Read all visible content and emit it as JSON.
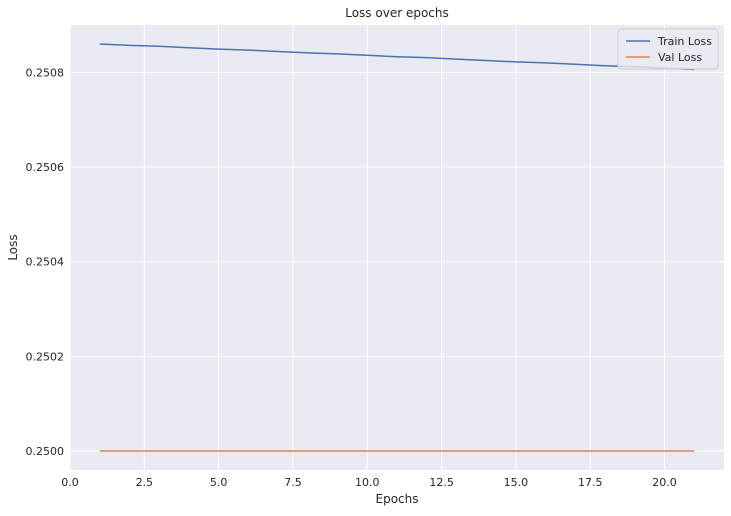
{
  "chart_data": {
    "type": "line",
    "title": "Loss over epochs",
    "xlabel": "Epochs",
    "ylabel": "Loss",
    "xlim": [
      0,
      22
    ],
    "ylim": [
      0.24996,
      0.2509
    ],
    "xticks": [
      0.0,
      2.5,
      5.0,
      7.5,
      10.0,
      12.5,
      15.0,
      17.5,
      20.0
    ],
    "xtick_labels": [
      "0.0",
      "2.5",
      "5.0",
      "7.5",
      "10.0",
      "12.5",
      "15.0",
      "17.5",
      "20.0"
    ],
    "yticks": [
      0.25,
      0.2502,
      0.2504,
      0.2506,
      0.2508
    ],
    "ytick_labels": [
      "0.2500",
      "0.2502",
      "0.2504",
      "0.2506",
      "0.2508"
    ],
    "grid": true,
    "legend_position": "top-right",
    "series": [
      {
        "name": "Train Loss",
        "color": "#4C72B0",
        "x": [
          1,
          2,
          3,
          4,
          5,
          6,
          7,
          8,
          9,
          10,
          11,
          12,
          13,
          14,
          15,
          16,
          17,
          18,
          19,
          20,
          21
        ],
        "y": [
          0.25086,
          0.250857,
          0.250855,
          0.250852,
          0.250849,
          0.250847,
          0.250844,
          0.250841,
          0.250839,
          0.250836,
          0.250833,
          0.250831,
          0.250828,
          0.250825,
          0.250822,
          0.25082,
          0.250817,
          0.250814,
          0.250812,
          0.250809,
          0.250806
        ]
      },
      {
        "name": "Val Loss",
        "color": "#DD8452",
        "x": [
          1,
          2,
          3,
          4,
          5,
          6,
          7,
          8,
          9,
          10,
          11,
          12,
          13,
          14,
          15,
          16,
          17,
          18,
          19,
          20,
          21
        ],
        "y": [
          0.25,
          0.25,
          0.25,
          0.25,
          0.25,
          0.25,
          0.25,
          0.25,
          0.25,
          0.25,
          0.25,
          0.25,
          0.25,
          0.25,
          0.25,
          0.25,
          0.25,
          0.25,
          0.25,
          0.25,
          0.25
        ]
      }
    ]
  }
}
